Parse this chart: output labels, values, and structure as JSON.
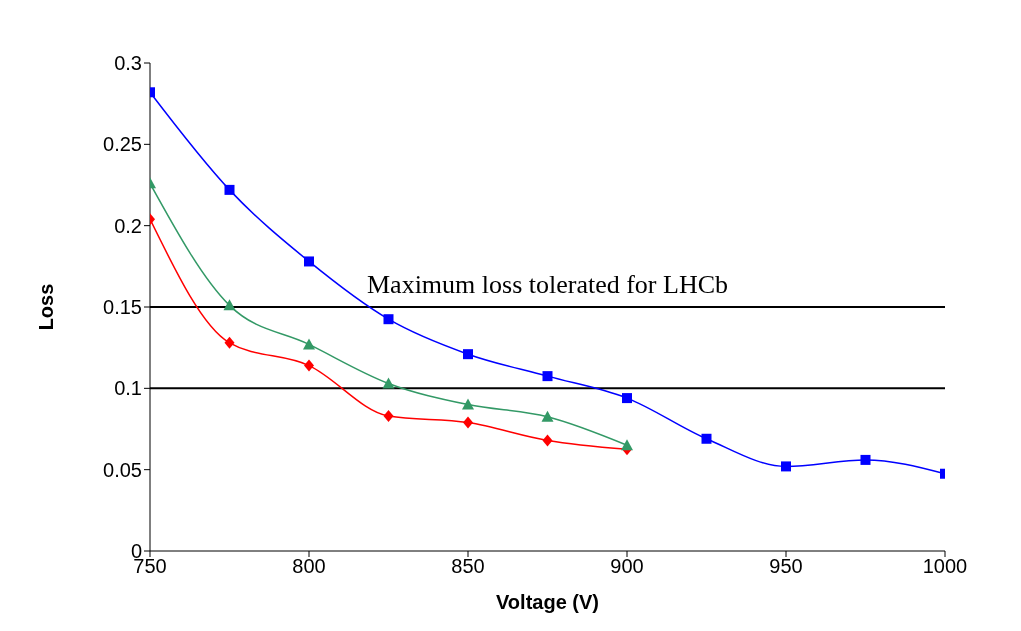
{
  "chart_data": {
    "type": "line",
    "xlabel": "Voltage (V)",
    "ylabel": "Loss",
    "x": [
      750,
      775,
      800,
      825,
      850,
      875,
      900,
      925,
      950,
      975,
      1000
    ],
    "series": [
      {
        "color": "#0000ff",
        "marker": "square",
        "values": [
          0.282,
          0.222,
          0.178,
          0.1425,
          0.121,
          0.1075,
          0.094,
          0.069,
          0.052,
          0.056,
          0.0475
        ]
      },
      {
        "color": "#339966",
        "marker": "triangle",
        "values": [
          0.226,
          0.151,
          0.127,
          0.103,
          0.09,
          0.0825,
          0.065,
          null,
          null,
          null,
          null
        ]
      },
      {
        "color": "#ff0000",
        "marker": "diamond",
        "values": [
          0.204,
          0.128,
          0.114,
          0.083,
          0.079,
          0.068,
          0.0625,
          null,
          null,
          null,
          null
        ]
      }
    ],
    "xlim": [
      750,
      1000
    ],
    "xticks": [
      750,
      800,
      850,
      900,
      950,
      1000
    ],
    "ylim": [
      0,
      0.3
    ],
    "yticks": [
      0,
      0.05,
      0.1,
      0.15,
      0.2,
      0.25,
      0.3
    ],
    "ref_lines": [
      {
        "axis": "y",
        "value": 0.15,
        "label": "Maximum loss tolerated for LHCb",
        "color": "#000000"
      },
      {
        "axis": "y",
        "value": 0.1,
        "color": "#000000"
      }
    ],
    "grid": false,
    "legend": false,
    "line_style": "solid"
  }
}
